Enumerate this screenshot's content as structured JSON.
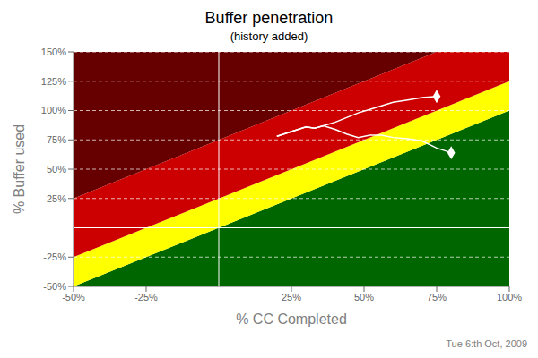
{
  "chart_data": {
    "type": "line",
    "title": "Buffer penetration",
    "subtitle": "(history added)",
    "xlabel": "% CC Completed",
    "ylabel": "% Buffer used",
    "annotation": "Tue 6:th Oct, 2009",
    "xlim": [
      -0.5,
      1.0
    ],
    "ylim": [
      -0.5,
      1.5
    ],
    "xticks": [
      {
        "value": -0.5,
        "label": "-50%"
      },
      {
        "value": -0.25,
        "label": "-25%"
      },
      {
        "value": 0.25,
        "label": "25%"
      },
      {
        "value": 0.5,
        "label": "50%"
      },
      {
        "value": 0.75,
        "label": "75%"
      },
      {
        "value": 1.0,
        "label": "100%"
      }
    ],
    "yticks": [
      {
        "value": -0.5,
        "label": "-50%"
      },
      {
        "value": -0.25,
        "label": "-25%"
      },
      {
        "value": 0.25,
        "label": "25%"
      },
      {
        "value": 0.5,
        "label": "50%"
      },
      {
        "value": 0.75,
        "label": "75%"
      },
      {
        "value": 1.0,
        "label": "100%"
      },
      {
        "value": 1.25,
        "label": "125%"
      },
      {
        "value": 1.5,
        "label": "150%"
      }
    ],
    "grid": "y",
    "reference_lines": {
      "x": [
        0
      ],
      "y": [
        0
      ]
    },
    "bands": [
      {
        "color": "#660000",
        "lower_intercept": 0.75
      },
      {
        "color": "#006600",
        "upper_intercept": 0.0
      },
      {
        "color": "#ffff00",
        "lower_intercept": 0.0,
        "upper_intercept": 0.25
      },
      {
        "color": "#cc0000",
        "lower_intercept": 0.25,
        "upper_intercept": 0.75
      }
    ],
    "series": [
      {
        "type": "line",
        "color": "#ffffff",
        "x": [
          0.2,
          0.25,
          0.3,
          0.33,
          0.36,
          0.4,
          0.44,
          0.48,
          0.52,
          0.56,
          0.6,
          0.65,
          0.7,
          0.75,
          0.8
        ],
        "values": [
          0.78,
          0.82,
          0.86,
          0.85,
          0.87,
          0.84,
          0.8,
          0.77,
          0.79,
          0.79,
          0.77,
          0.76,
          0.74,
          0.68,
          0.64
        ]
      },
      {
        "type": "line",
        "color": "#ffffff",
        "x": [
          0.2,
          0.25,
          0.3,
          0.33,
          0.36,
          0.4,
          0.44,
          0.48,
          0.52,
          0.56,
          0.6,
          0.65,
          0.7,
          0.75
        ],
        "values": [
          0.78,
          0.82,
          0.86,
          0.85,
          0.87,
          0.9,
          0.94,
          0.98,
          1.01,
          1.04,
          1.07,
          1.09,
          1.11,
          1.12
        ]
      },
      {
        "type": "scatter",
        "marker": "diamond",
        "color": "#ffffff",
        "x": [
          0.75
        ],
        "values": [
          1.12
        ]
      },
      {
        "type": "scatter",
        "marker": "diamond",
        "color": "#ffffff",
        "x": [
          0.8
        ],
        "values": [
          0.64
        ]
      }
    ]
  }
}
